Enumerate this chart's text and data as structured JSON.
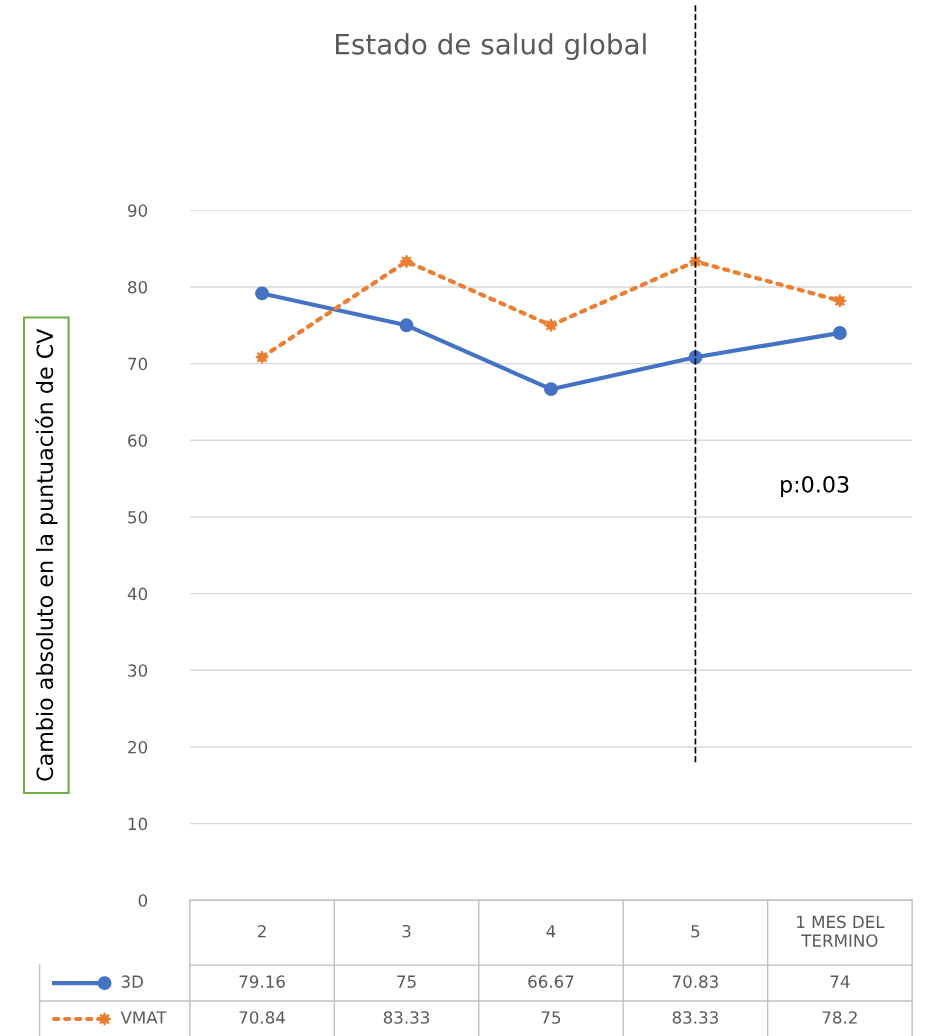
{
  "chart_data": {
    "type": "line",
    "title": "Estado de salud global",
    "ylabel": "Cambio absoluto en la puntuación de CV",
    "categories": [
      "2",
      "3",
      "4",
      "5",
      "1 MES DEL TERMINO"
    ],
    "series": [
      {
        "name": "3D",
        "color": "#4472c4",
        "values": [
          79.16,
          75,
          66.67,
          70.83,
          74
        ],
        "marker": "circle",
        "line_style": "solid"
      },
      {
        "name": "VMAT",
        "color": "#ed7d31",
        "values": [
          70.84,
          83.33,
          75,
          83.33,
          78.2
        ],
        "marker": "star",
        "line_style": "dotted"
      }
    ],
    "ylim": [
      0,
      90
    ],
    "yticks": [
      0,
      10,
      20,
      30,
      40,
      50,
      60,
      70,
      80,
      90
    ],
    "grid": "y",
    "data_labels": true,
    "legend": "bottom",
    "ref_lines": [
      {
        "axis": "x",
        "value": "5",
        "color": "#000000",
        "line_style": "dashed"
      }
    ],
    "annotations": [
      "p:0.03"
    ]
  }
}
